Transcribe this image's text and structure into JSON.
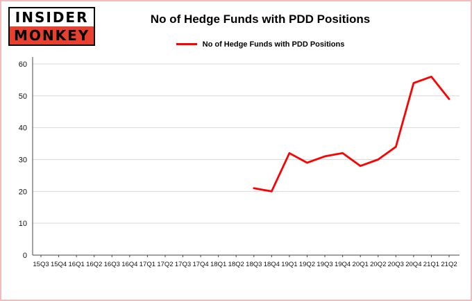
{
  "logo": {
    "line1": "INSIDER",
    "line2": "MONKEY"
  },
  "colors": {
    "line": "#fe0000",
    "logo_red": "#e8402e",
    "frame_border": "#f2bcbc",
    "grid": "#d8d8d8"
  },
  "chart_data": {
    "type": "line",
    "title": "No of Hedge Funds with PDD Positions",
    "legend": "No of Hedge Funds with PDD Positions",
    "legend_position": "top",
    "grid": true,
    "categories": [
      "15Q3",
      "15Q4",
      "16Q1",
      "16Q2",
      "16Q3",
      "16Q4",
      "17Q1",
      "17Q2",
      "17Q3",
      "17Q4",
      "18Q1",
      "18Q2",
      "18Q3",
      "18Q4",
      "19Q1",
      "19Q2",
      "19Q3",
      "19Q4",
      "20Q1",
      "20Q2",
      "20Q3",
      "20Q4",
      "21Q1",
      "21Q2"
    ],
    "values": [
      null,
      null,
      null,
      null,
      null,
      null,
      null,
      null,
      null,
      null,
      null,
      null,
      21,
      20,
      32,
      29,
      31,
      32,
      28,
      30,
      34,
      54,
      56,
      49
    ],
    "ylim": [
      0,
      60
    ],
    "yticks": [
      0,
      10,
      20,
      30,
      40,
      50,
      60
    ],
    "xlabel": "",
    "ylabel": "",
    "line_color": "#fe0000"
  }
}
